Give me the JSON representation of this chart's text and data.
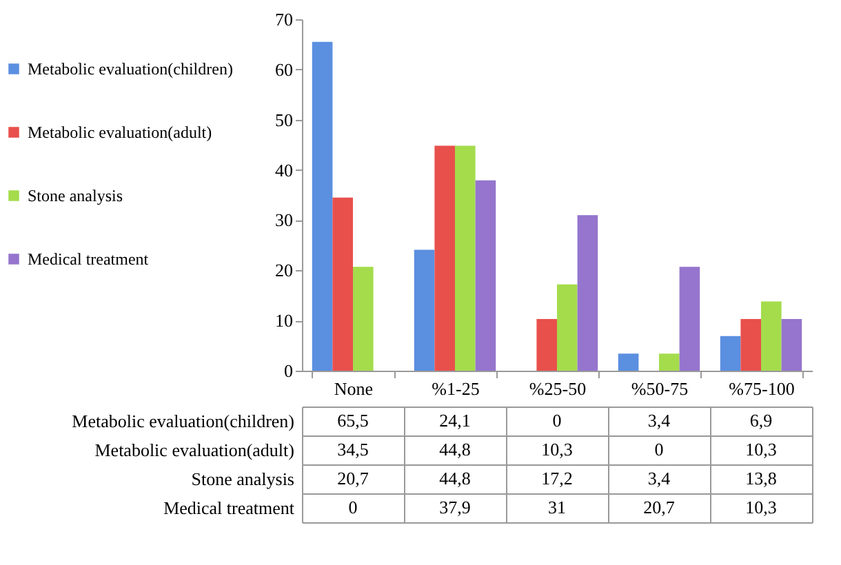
{
  "chart_data": {
    "type": "bar",
    "categories": [
      "None",
      "%1-25",
      "%25-50",
      "%50-75",
      "%75-100"
    ],
    "series": [
      {
        "name": "Metabolic evaluation(children)",
        "color": "#5b8fe0",
        "values": [
          65.5,
          24.1,
          0,
          3.4,
          6.9
        ],
        "value_labels": [
          "65,5",
          "24,1",
          "0",
          "3,4",
          "6,9"
        ]
      },
      {
        "name": "Metabolic evaluation(adult)",
        "color": "#e8504c",
        "values": [
          34.5,
          44.8,
          10.3,
          0,
          10.3
        ],
        "value_labels": [
          "34,5",
          "44,8",
          "10,3",
          "0",
          "10,3"
        ]
      },
      {
        "name": "Stone analysis",
        "color": "#a4dc4c",
        "values": [
          20.7,
          44.8,
          17.2,
          3.4,
          13.8
        ],
        "value_labels": [
          "20,7",
          "44,8",
          "17,2",
          "3,4",
          "13,8"
        ]
      },
      {
        "name": "Medical treatment",
        "color": "#9575cd",
        "values": [
          0,
          37.9,
          31,
          20.7,
          10.3
        ],
        "value_labels": [
          "0",
          "37,9",
          "31",
          "20,7",
          "10,3"
        ]
      }
    ],
    "ylim": [
      0,
      70
    ],
    "yticks": [
      0,
      10,
      20,
      30,
      40,
      50,
      60,
      70
    ],
    "legend": "left"
  }
}
